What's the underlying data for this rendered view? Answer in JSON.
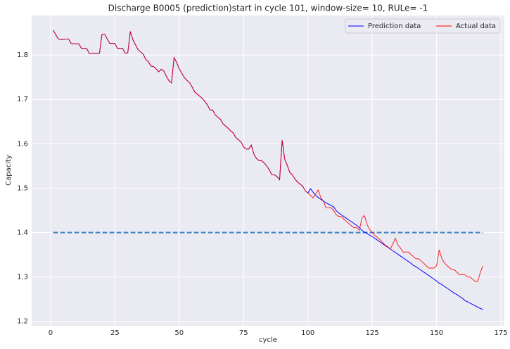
{
  "chart_data": {
    "type": "line",
    "title": "Discharge B0005 (prediction)start in cycle 101, window-size= 10, RULe= -1",
    "x_label": "cycle",
    "y_label": "Capacity",
    "x": [
      1,
      2,
      3,
      4,
      5,
      6,
      7,
      8,
      9,
      10,
      11,
      12,
      13,
      14,
      15,
      16,
      17,
      18,
      19,
      20,
      21,
      22,
      23,
      24,
      25,
      26,
      27,
      28,
      29,
      30,
      31,
      32,
      33,
      34,
      35,
      36,
      37,
      38,
      39,
      40,
      41,
      42,
      43,
      44,
      45,
      46,
      47,
      48,
      49,
      50,
      51,
      52,
      53,
      54,
      55,
      56,
      57,
      58,
      59,
      60,
      61,
      62,
      63,
      64,
      65,
      66,
      67,
      68,
      69,
      70,
      71,
      72,
      73,
      74,
      75,
      76,
      77,
      78,
      79,
      80,
      81,
      82,
      83,
      84,
      85,
      86,
      87,
      88,
      89,
      90,
      91,
      92,
      93,
      94,
      95,
      96,
      97,
      98,
      99,
      100,
      101,
      102,
      103,
      104,
      105,
      106,
      107,
      108,
      109,
      110,
      111,
      112,
      113,
      114,
      115,
      116,
      117,
      118,
      119,
      120,
      121,
      122,
      123,
      124,
      125,
      126,
      127,
      128,
      129,
      130,
      131,
      132,
      133,
      134,
      135,
      136,
      137,
      138,
      139,
      140,
      141,
      142,
      143,
      144,
      145,
      146,
      147,
      148,
      149,
      150,
      151,
      152,
      153,
      154,
      155,
      156,
      157,
      158,
      159,
      160,
      161,
      162,
      163,
      164,
      165,
      166,
      167,
      168
    ],
    "series": [
      {
        "name": "Prediction data",
        "color": "#0000ff",
        "values": [
          1.856,
          1.846,
          1.836,
          1.835,
          1.835,
          1.836,
          1.836,
          1.826,
          1.825,
          1.825,
          1.825,
          1.815,
          1.815,
          1.815,
          1.804,
          1.803,
          1.804,
          1.804,
          1.804,
          1.847,
          1.847,
          1.836,
          1.826,
          1.826,
          1.826,
          1.815,
          1.815,
          1.815,
          1.804,
          1.805,
          1.853,
          1.834,
          1.823,
          1.812,
          1.807,
          1.802,
          1.79,
          1.785,
          1.775,
          1.774,
          1.769,
          1.762,
          1.768,
          1.764,
          1.752,
          1.742,
          1.737,
          1.794,
          1.783,
          1.769,
          1.759,
          1.749,
          1.743,
          1.738,
          1.728,
          1.717,
          1.712,
          1.707,
          1.702,
          1.695,
          1.687,
          1.676,
          1.676,
          1.665,
          1.66,
          1.655,
          1.645,
          1.64,
          1.635,
          1.629,
          1.624,
          1.614,
          1.609,
          1.604,
          1.593,
          1.588,
          1.588,
          1.597,
          1.577,
          1.567,
          1.562,
          1.562,
          1.557,
          1.55,
          1.541,
          1.53,
          1.53,
          1.526,
          1.519,
          1.608,
          1.565,
          1.551,
          1.535,
          1.53,
          1.52,
          1.514,
          1.509,
          1.504,
          1.494,
          1.489,
          1.499,
          1.491,
          1.484,
          1.479,
          1.475,
          1.471,
          1.467,
          1.464,
          1.461,
          1.458,
          1.449,
          1.444,
          1.44,
          1.436,
          1.432,
          1.428,
          1.424,
          1.42,
          1.416,
          1.411,
          1.405,
          1.401,
          1.398,
          1.394,
          1.391,
          1.387,
          1.383,
          1.379,
          1.375,
          1.371,
          1.367,
          1.363,
          1.359,
          1.355,
          1.351,
          1.347,
          1.343,
          1.339,
          1.335,
          1.331,
          1.326,
          1.323,
          1.319,
          1.315,
          1.311,
          1.307,
          1.303,
          1.299,
          1.295,
          1.291,
          1.286,
          1.283,
          1.279,
          1.275,
          1.271,
          1.267,
          1.263,
          1.26,
          1.256,
          1.252,
          1.247,
          1.244,
          1.241,
          1.238,
          1.235,
          1.232,
          1.229,
          1.227
        ]
      },
      {
        "name": "Actual data",
        "color": "#ff0000",
        "values": [
          1.856,
          1.846,
          1.836,
          1.835,
          1.835,
          1.836,
          1.836,
          1.826,
          1.825,
          1.825,
          1.825,
          1.815,
          1.815,
          1.815,
          1.804,
          1.803,
          1.804,
          1.804,
          1.804,
          1.847,
          1.847,
          1.836,
          1.826,
          1.826,
          1.826,
          1.815,
          1.815,
          1.815,
          1.804,
          1.805,
          1.853,
          1.834,
          1.823,
          1.812,
          1.807,
          1.802,
          1.79,
          1.785,
          1.775,
          1.774,
          1.769,
          1.762,
          1.768,
          1.764,
          1.752,
          1.742,
          1.737,
          1.794,
          1.783,
          1.769,
          1.759,
          1.749,
          1.743,
          1.738,
          1.728,
          1.717,
          1.712,
          1.707,
          1.702,
          1.695,
          1.687,
          1.676,
          1.676,
          1.665,
          1.66,
          1.655,
          1.645,
          1.64,
          1.635,
          1.629,
          1.624,
          1.614,
          1.609,
          1.604,
          1.593,
          1.588,
          1.588,
          1.597,
          1.577,
          1.567,
          1.562,
          1.562,
          1.557,
          1.55,
          1.541,
          1.53,
          1.53,
          1.526,
          1.519,
          1.608,
          1.565,
          1.551,
          1.535,
          1.53,
          1.52,
          1.514,
          1.509,
          1.504,
          1.494,
          1.489,
          1.484,
          1.478,
          1.487,
          1.496,
          1.479,
          1.471,
          1.456,
          1.456,
          1.456,
          1.45,
          1.44,
          1.436,
          1.436,
          1.43,
          1.425,
          1.42,
          1.415,
          1.411,
          1.411,
          1.405,
          1.433,
          1.438,
          1.418,
          1.407,
          1.4,
          1.394,
          1.389,
          1.384,
          1.378,
          1.372,
          1.368,
          1.363,
          1.374,
          1.387,
          1.372,
          1.365,
          1.356,
          1.356,
          1.356,
          1.351,
          1.346,
          1.341,
          1.341,
          1.336,
          1.331,
          1.325,
          1.32,
          1.32,
          1.32,
          1.325,
          1.361,
          1.342,
          1.332,
          1.326,
          1.321,
          1.316,
          1.316,
          1.31,
          1.305,
          1.305,
          1.305,
          1.3,
          1.3,
          1.295,
          1.29,
          1.29,
          1.31,
          1.325
        ]
      }
    ],
    "hline": {
      "y": 1.4,
      "xmin": 1,
      "xmax": 168,
      "color": "#3a80c3",
      "dashed": true
    },
    "xlim": [
      -7.35,
      176.35
    ],
    "xticks": [
      0,
      25,
      50,
      75,
      100,
      125,
      150,
      175
    ],
    "ylim": [
      1.19,
      1.889
    ],
    "yticks": [
      1.2,
      1.3,
      1.4,
      1.5,
      1.6,
      1.7,
      1.8
    ],
    "grid": true,
    "legend": "upper right"
  }
}
